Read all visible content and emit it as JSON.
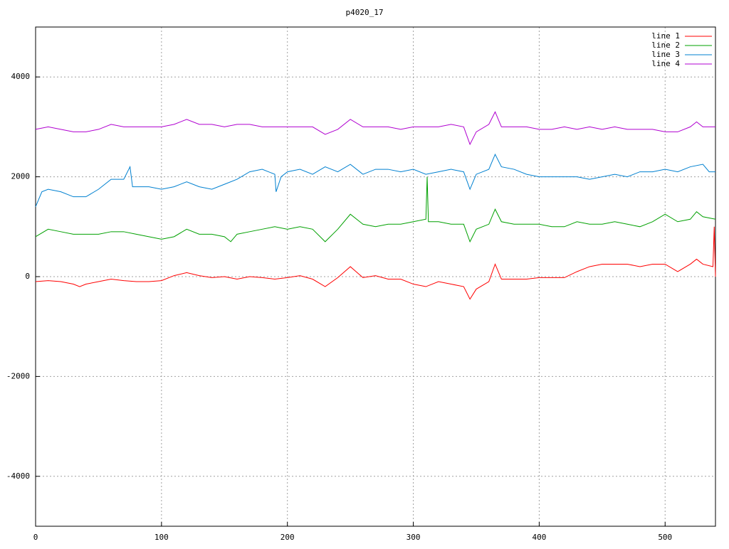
{
  "chart_data": {
    "type": "line",
    "title": "p4020_17",
    "xlim": [
      0,
      540
    ],
    "xticks": [
      0,
      100,
      200,
      300,
      400,
      500
    ],
    "ylim": [
      -5000,
      5000
    ],
    "yticks": [
      -4000,
      -2000,
      0,
      2000,
      4000
    ],
    "grid": true,
    "legend": "top-right",
    "series": [
      {
        "name": "line 1",
        "color": "#ff0000",
        "x": [
          0,
          10,
          20,
          30,
          35,
          40,
          50,
          60,
          70,
          80,
          90,
          100,
          110,
          120,
          130,
          140,
          150,
          160,
          170,
          180,
          190,
          200,
          210,
          220,
          230,
          240,
          250,
          260,
          270,
          280,
          290,
          300,
          310,
          320,
          330,
          340,
          345,
          350,
          360,
          365,
          370,
          380,
          390,
          400,
          410,
          420,
          430,
          440,
          450,
          460,
          470,
          480,
          490,
          500,
          510,
          520,
          525,
          530,
          538,
          539,
          540
        ],
        "values": [
          -100,
          -80,
          -100,
          -150,
          -200,
          -150,
          -100,
          -50,
          -80,
          -100,
          -100,
          -80,
          20,
          80,
          20,
          -20,
          0,
          -50,
          0,
          -20,
          -50,
          -20,
          20,
          -50,
          -200,
          -20,
          200,
          -20,
          20,
          -50,
          -50,
          -150,
          -200,
          -100,
          -150,
          -200,
          -450,
          -250,
          -100,
          250,
          -50,
          -50,
          -50,
          -20,
          -20,
          -20,
          100,
          200,
          250,
          250,
          250,
          200,
          250,
          250,
          100,
          250,
          350,
          250,
          200,
          1000,
          0
        ]
      },
      {
        "name": "line 2",
        "color": "#00a000",
        "x": [
          0,
          10,
          20,
          30,
          40,
          50,
          60,
          70,
          80,
          90,
          100,
          110,
          120,
          130,
          140,
          150,
          155,
          160,
          170,
          180,
          190,
          200,
          210,
          220,
          230,
          240,
          250,
          260,
          270,
          280,
          290,
          300,
          310,
          311,
          312,
          320,
          330,
          340,
          345,
          350,
          360,
          365,
          370,
          380,
          390,
          400,
          410,
          420,
          430,
          440,
          450,
          460,
          470,
          480,
          490,
          500,
          510,
          520,
          525,
          530,
          540
        ],
        "values": [
          800,
          950,
          900,
          850,
          850,
          850,
          900,
          900,
          850,
          800,
          750,
          800,
          950,
          850,
          850,
          800,
          700,
          850,
          900,
          950,
          1000,
          950,
          1000,
          950,
          700,
          950,
          1250,
          1050,
          1000,
          1050,
          1050,
          1100,
          1150,
          2000,
          1100,
          1100,
          1050,
          1050,
          700,
          950,
          1050,
          1350,
          1100,
          1050,
          1050,
          1050,
          1000,
          1000,
          1100,
          1050,
          1050,
          1100,
          1050,
          1000,
          1100,
          1250,
          1100,
          1150,
          1300,
          1200,
          1150
        ]
      },
      {
        "name": "line 3",
        "color": "#0080d0",
        "x": [
          0,
          5,
          10,
          20,
          30,
          40,
          50,
          60,
          70,
          75,
          77,
          80,
          90,
          100,
          110,
          120,
          130,
          140,
          150,
          160,
          170,
          180,
          190,
          191,
          195,
          200,
          210,
          220,
          230,
          240,
          250,
          260,
          270,
          280,
          290,
          300,
          310,
          320,
          330,
          340,
          345,
          350,
          360,
          365,
          370,
          380,
          390,
          400,
          410,
          420,
          430,
          440,
          450,
          460,
          470,
          480,
          490,
          500,
          510,
          520,
          530,
          535,
          540
        ],
        "values": [
          1400,
          1700,
          1750,
          1700,
          1600,
          1600,
          1750,
          1950,
          1950,
          2200,
          1800,
          1800,
          1800,
          1750,
          1800,
          1900,
          1800,
          1750,
          1850,
          1950,
          2100,
          2150,
          2050,
          1700,
          2000,
          2100,
          2150,
          2050,
          2200,
          2100,
          2250,
          2050,
          2150,
          2150,
          2100,
          2150,
          2050,
          2100,
          2150,
          2100,
          1750,
          2050,
          2150,
          2450,
          2200,
          2150,
          2050,
          2000,
          2000,
          2000,
          2000,
          1950,
          2000,
          2050,
          2000,
          2100,
          2100,
          2150,
          2100,
          2200,
          2250,
          2100,
          2100
        ]
      },
      {
        "name": "line 4",
        "color": "#b000d0",
        "x": [
          0,
          10,
          20,
          30,
          40,
          50,
          60,
          70,
          80,
          90,
          100,
          110,
          120,
          130,
          140,
          150,
          160,
          170,
          180,
          190,
          200,
          210,
          220,
          230,
          240,
          250,
          260,
          270,
          280,
          290,
          300,
          310,
          320,
          330,
          340,
          345,
          350,
          360,
          365,
          370,
          380,
          390,
          400,
          410,
          420,
          430,
          440,
          450,
          460,
          470,
          480,
          490,
          500,
          510,
          520,
          525,
          530,
          540
        ],
        "values": [
          2950,
          3000,
          2950,
          2900,
          2900,
          2950,
          3050,
          3000,
          3000,
          3000,
          3000,
          3050,
          3150,
          3050,
          3050,
          3000,
          3050,
          3050,
          3000,
          3000,
          3000,
          3000,
          3000,
          2850,
          2950,
          3150,
          3000,
          3000,
          3000,
          2950,
          3000,
          3000,
          3000,
          3050,
          3000,
          2650,
          2900,
          3050,
          3300,
          3000,
          3000,
          3000,
          2950,
          2950,
          3000,
          2950,
          3000,
          2950,
          3000,
          2950,
          2950,
          2950,
          2900,
          2900,
          3000,
          3100,
          3000,
          3000
        ]
      }
    ]
  }
}
